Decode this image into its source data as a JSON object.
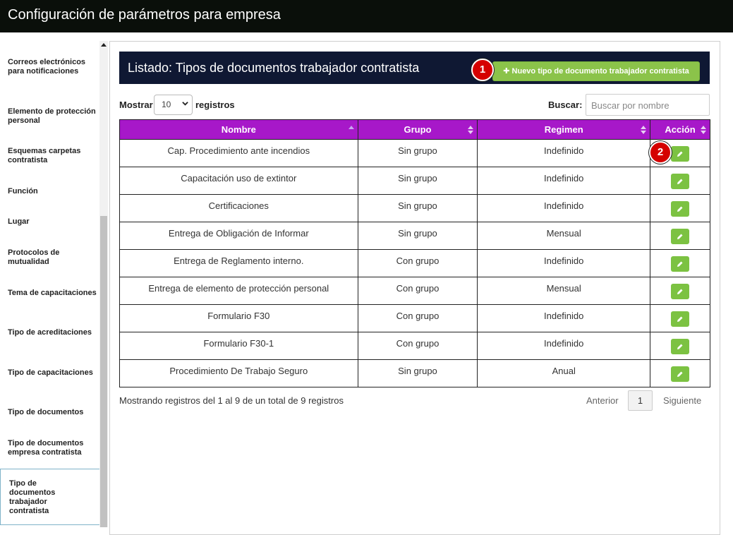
{
  "header": {
    "title": "Configuración de parámetros para empresa"
  },
  "sidebar": {
    "items": [
      {
        "label": "Correos electrónicos para notificaciones"
      },
      {
        "label": "Elemento de protección personal"
      },
      {
        "label": "Esquemas carpetas contratista"
      },
      {
        "label": "Función"
      },
      {
        "label": "Lugar"
      },
      {
        "label": "Protocolos de mutualidad"
      },
      {
        "label": "Tema de capacitaciones"
      },
      {
        "label": "Tipo de acreditaciones"
      },
      {
        "label": "Tipo de capacitaciones"
      },
      {
        "label": "Tipo de documentos"
      },
      {
        "label": "Tipo de documentos empresa contratista"
      },
      {
        "label": "Tipo de documentos trabajador contratista"
      }
    ]
  },
  "panel": {
    "title": "Listado: Tipos de documentos trabajador contratista",
    "new_button": "Nuevo tipo de documento trabajador contratista"
  },
  "markers": {
    "m1": "1",
    "m2": "2"
  },
  "controls": {
    "show_label": "Mostrar",
    "show_value": "10",
    "records_label": "registros",
    "search_label": "Buscar:",
    "search_placeholder": "Buscar por nombre"
  },
  "table": {
    "columns": [
      "Nombre",
      "Grupo",
      "Regimen",
      "Acción"
    ],
    "rows": [
      [
        "Cap. Procedimiento ante incendios",
        "Sin grupo",
        "Indefinido"
      ],
      [
        "Capacitación uso de extintor",
        "Sin grupo",
        "Indefinido"
      ],
      [
        "Certificaciones",
        "Sin grupo",
        "Indefinido"
      ],
      [
        "Entrega de Obligación de Informar",
        "Sin grupo",
        "Mensual"
      ],
      [
        "Entrega de Reglamento interno.",
        "Con grupo",
        "Indefinido"
      ],
      [
        "Entrega de elemento de protección personal",
        "Con grupo",
        "Mensual"
      ],
      [
        "Formulario F30",
        "Con grupo",
        "Indefinido"
      ],
      [
        "Formulario F30-1",
        "Con grupo",
        "Indefinido"
      ],
      [
        "Procedimiento De Trabajo Seguro",
        "Sin grupo",
        "Anual"
      ]
    ]
  },
  "footer": {
    "info": "Mostrando registros del 1 al 9 de un total de 9 registros",
    "prev": "Anterior",
    "page": "1",
    "next": "Siguiente"
  },
  "colors": {
    "topbar": "#0a0f0a",
    "panel_header": "#0f1833",
    "table_header": "#a718c9",
    "accent_green": "#8bc34a",
    "marker_red": "#d50000"
  },
  "icons": {
    "new_button_icon": "plus-icon",
    "row_action_icon": "pencil-icon",
    "sort_icon": "sort-arrows-icon"
  }
}
